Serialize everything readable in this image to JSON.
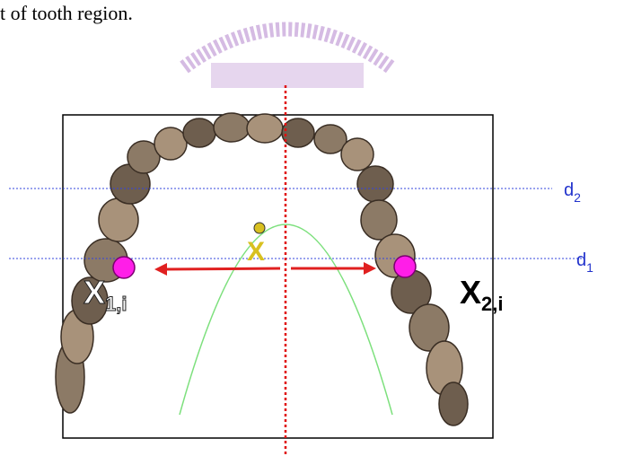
{
  "caption": "t of tooth region.",
  "labels": {
    "d2": {
      "main": "d",
      "sub": "2"
    },
    "d1": {
      "main": "d",
      "sub": "1"
    },
    "x": "X",
    "x1": {
      "main": "X",
      "sub": "1,i"
    },
    "x2": {
      "main": "X",
      "sub": "2,i"
    }
  }
}
